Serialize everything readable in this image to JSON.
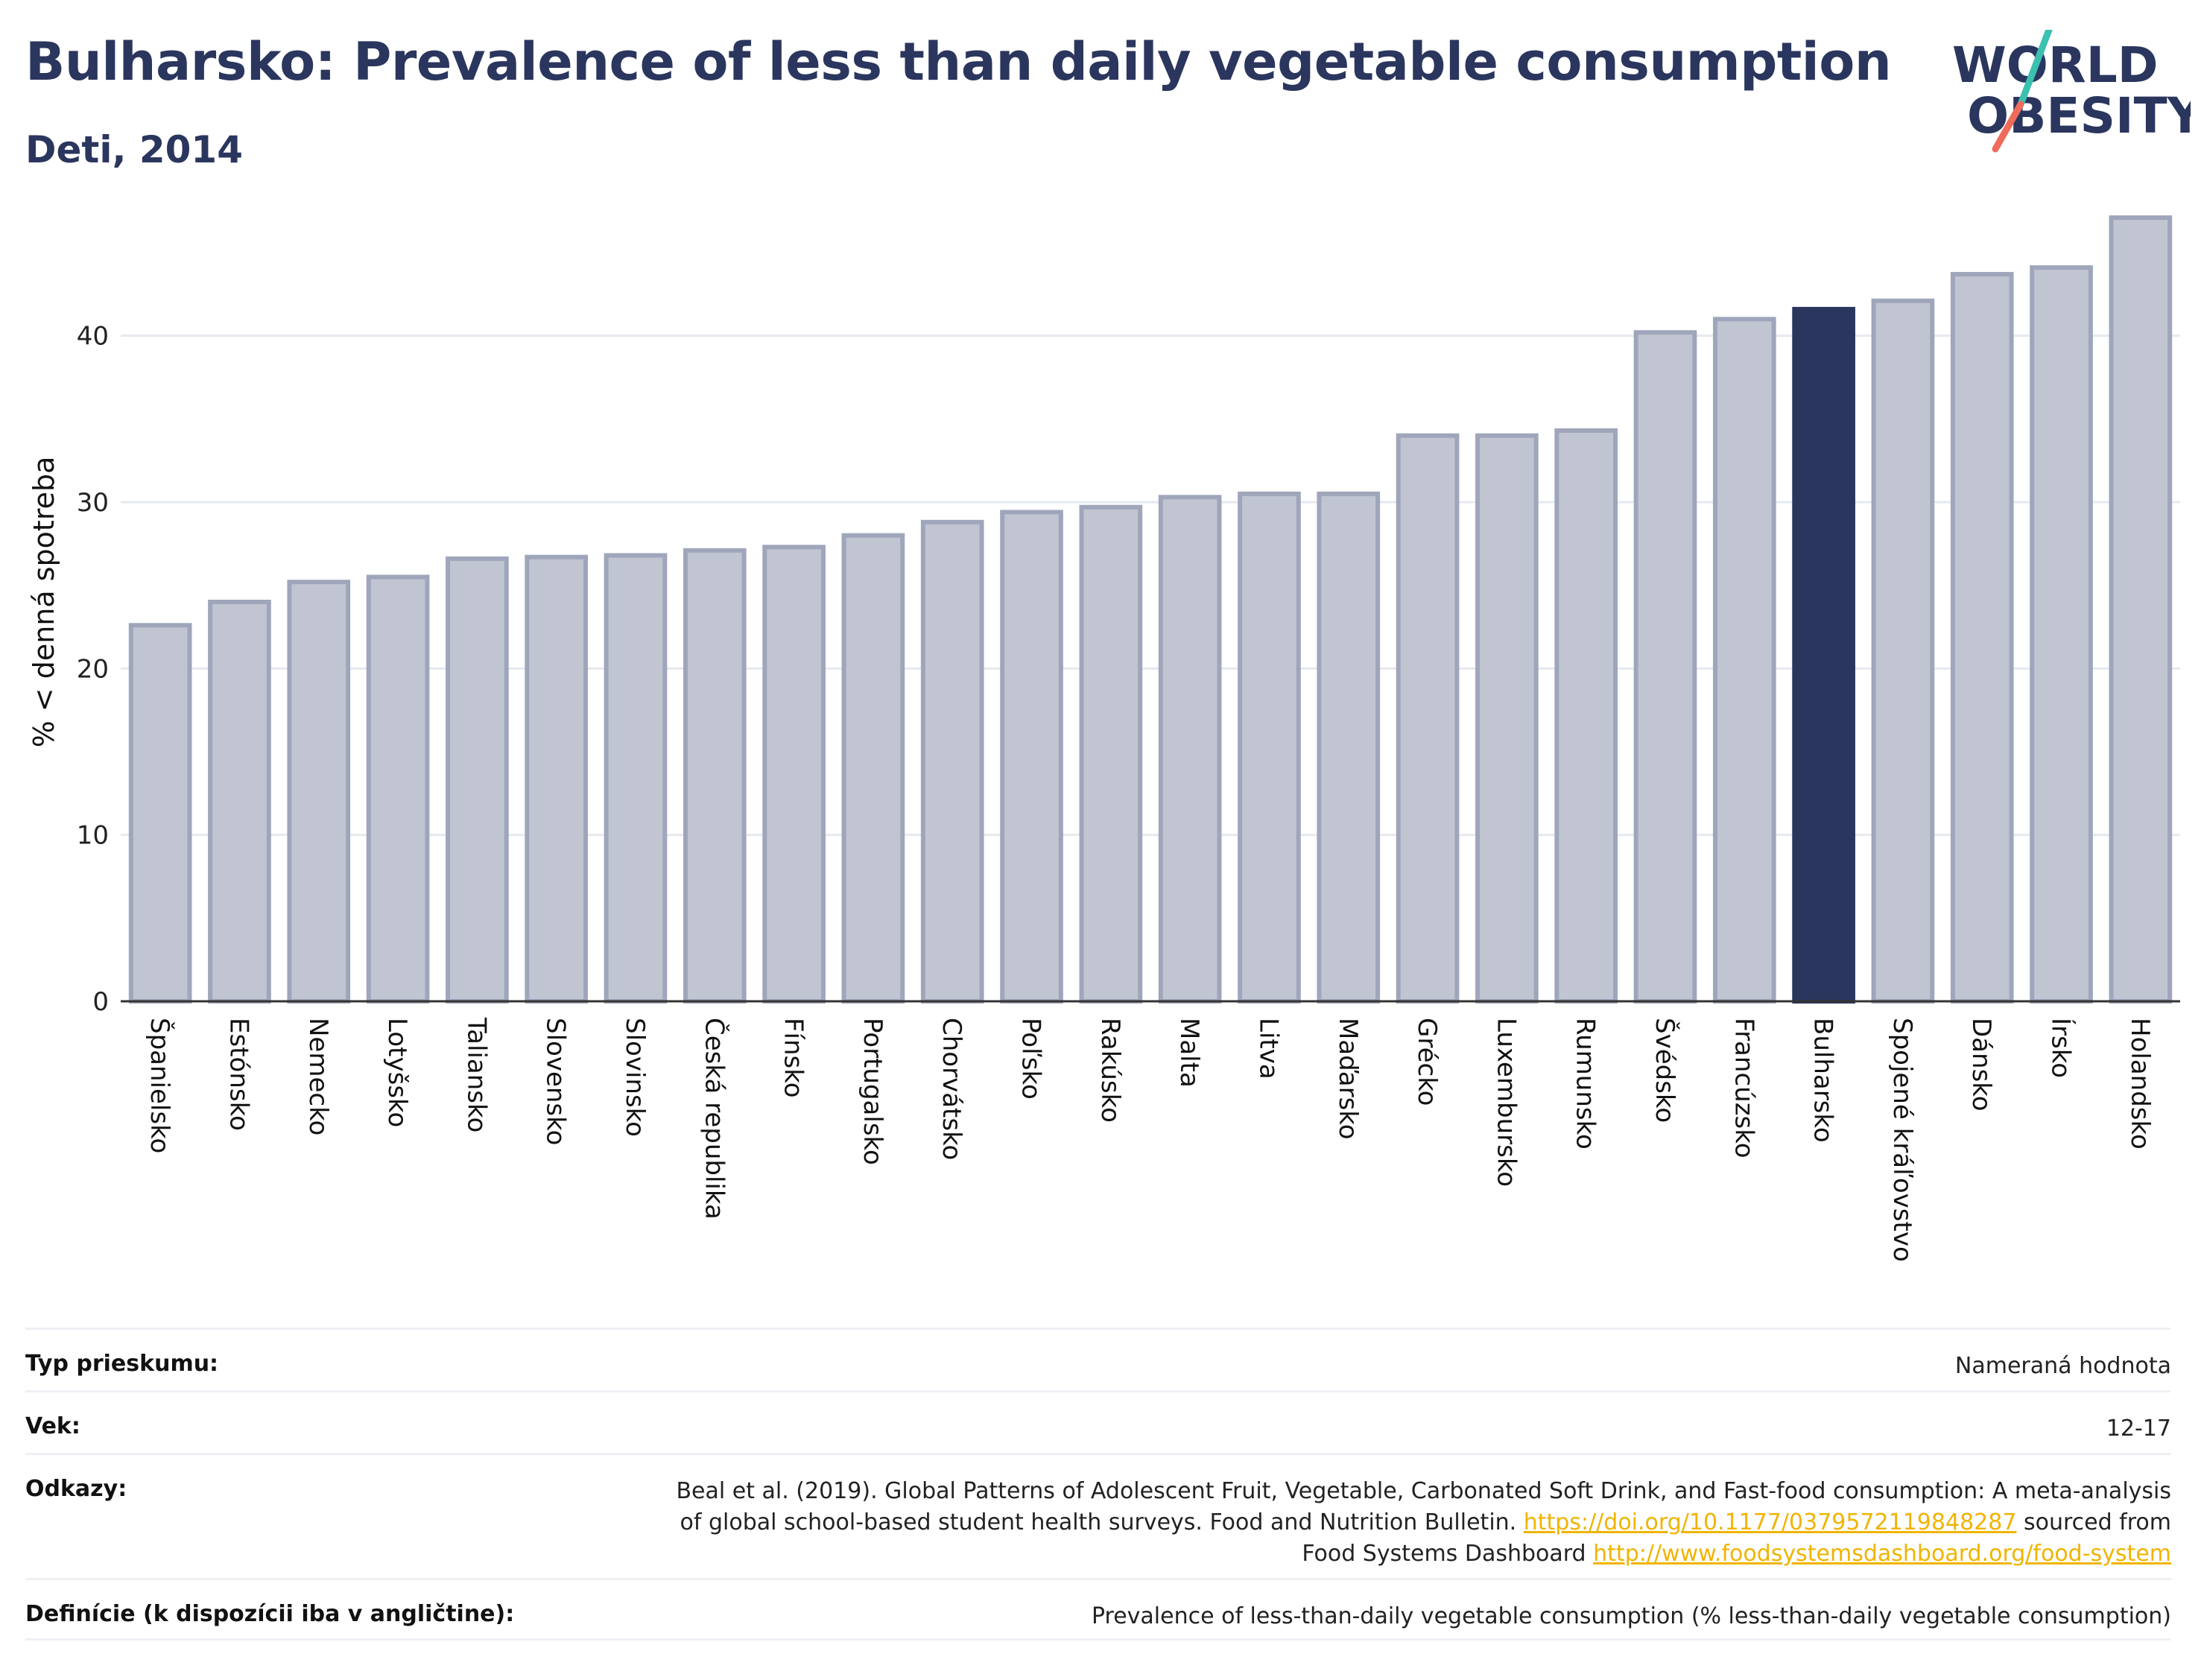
{
  "header": {
    "title": "Bulharsko: Prevalence of less than daily vegetable consumption",
    "subtitle": "Deti, 2014"
  },
  "logo": {
    "line1": "WORLD",
    "line2": "OBESITY"
  },
  "colors": {
    "bar": "#c1c5d2",
    "bar_border": "#9fa6bb",
    "highlight": "#2b365e",
    "grid": "#e6e9ef"
  },
  "chart_data": {
    "type": "bar",
    "categories": [
      "Španielsko",
      "Estónsko",
      "Nemecko",
      "Lotyšsko",
      "Taliansko",
      "Slovensko",
      "Slovinsko",
      "Česká republika",
      "Fínsko",
      "Portugalsko",
      "Chorvátsko",
      "Poľsko",
      "Rakúsko",
      "Malta",
      "Litva",
      "Maďarsko",
      "Grécko",
      "Luxembursko",
      "Rumunsko",
      "Švédsko",
      "Francúzsko",
      "Bulharsko",
      "Spojené kráľovstvo",
      "Dánsko",
      "Írsko",
      "Holandsko"
    ],
    "values": [
      22.6,
      24.0,
      25.2,
      25.5,
      26.6,
      26.7,
      26.8,
      27.1,
      27.3,
      28.0,
      28.8,
      29.4,
      29.7,
      30.3,
      30.5,
      30.5,
      34.0,
      34.0,
      34.3,
      40.2,
      41.0,
      41.6,
      42.1,
      43.7,
      44.1,
      47.1
    ],
    "highlight": "Bulharsko",
    "ylabel": "% < denná spotreba",
    "xlabel": "",
    "ylim": [
      0,
      48
    ],
    "yticks": [
      0,
      10,
      20,
      30,
      40
    ],
    "grid": true
  },
  "info": {
    "survey_label": "Typ prieskumu:",
    "survey_value": "Nameraná hodnota",
    "age_label": "Vek:",
    "age_value": "12-17",
    "refs_label": "Odkazy:",
    "refs_text1": "Beal et al. (2019). Global Patterns of Adolescent Fruit, Vegetable, Carbonated Soft Drink, and Fast-food consumption: A meta-analysis",
    "refs_text2": "of global school-based student health surveys. Food and Nutrition Bulletin.",
    "refs_link1": "https://doi.org/10.1177/0379572119848287",
    "refs_text3": "sourced from",
    "refs_text4": "Food Systems Dashboard",
    "refs_link2": "http://www.foodsystemsdashboard.org/food-system",
    "def_label": "Definície (k dispozícii iba v angličtine):",
    "def_value": "Prevalence of less-than-daily vegetable consumption (% less-than-daily vegetable consumption)"
  }
}
